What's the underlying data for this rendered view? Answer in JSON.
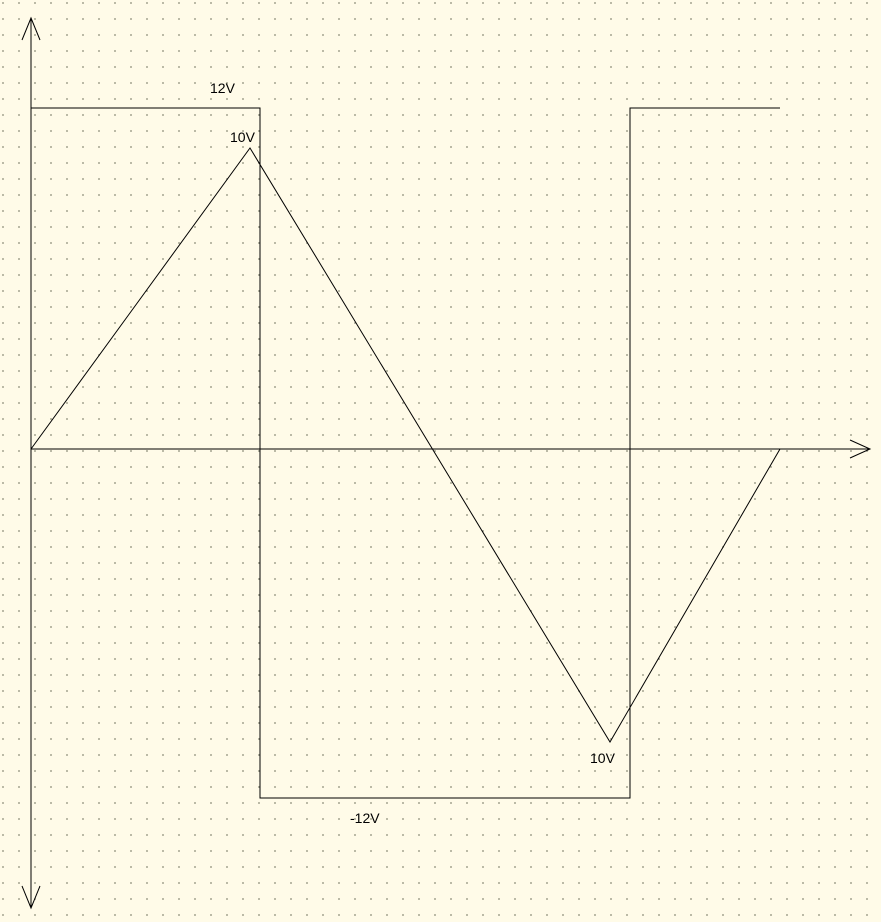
{
  "diagram": {
    "labels": {
      "square_high": "12V",
      "square_low": "-12V",
      "triangle_peak": "10V",
      "triangle_trough": "10V"
    }
  }
}
